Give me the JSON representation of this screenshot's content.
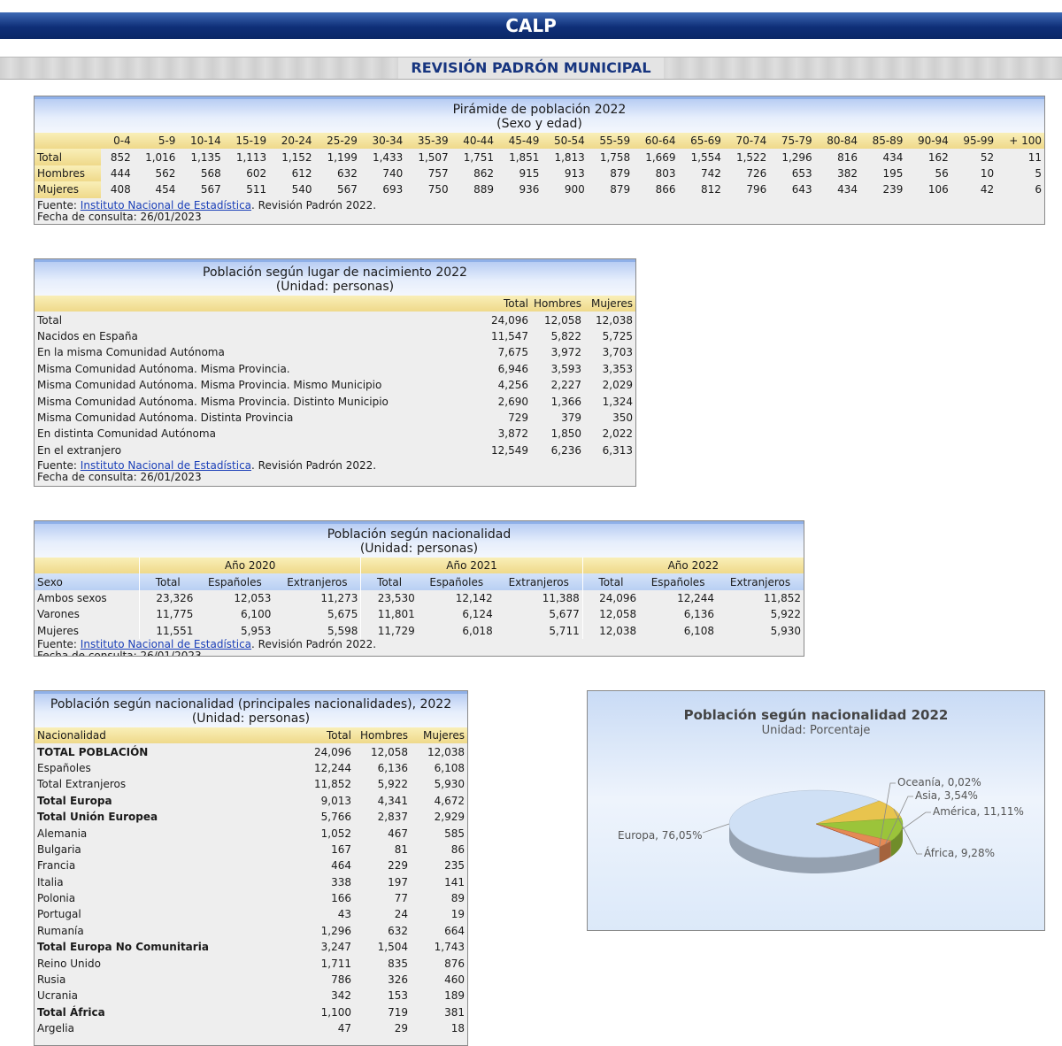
{
  "header": {
    "title": "CALP",
    "subtitle": "REVISIÓN PADRÓN MUNICIPAL"
  },
  "source": {
    "prefix": "Fuente: ",
    "link": "Instituto Nacional de Estadística",
    "suffix": ". Revisión Padrón 2022.",
    "date": "Fecha de consulta: 26/01/2023"
  },
  "piramide": {
    "title": "Pirámide de población 2022",
    "subtitle": "(Sexo y edad)",
    "columns": [
      "0-4",
      "5-9",
      "10-14",
      "15-19",
      "20-24",
      "25-29",
      "30-34",
      "35-39",
      "40-44",
      "45-49",
      "50-54",
      "55-59",
      "60-64",
      "65-69",
      "70-74",
      "75-79",
      "80-84",
      "85-89",
      "90-94",
      "95-99",
      "+ 100"
    ],
    "rows": [
      {
        "label": "Total",
        "values": [
          "852",
          "1,016",
          "1,135",
          "1,113",
          "1,152",
          "1,199",
          "1,433",
          "1,507",
          "1,751",
          "1,851",
          "1,813",
          "1,758",
          "1,669",
          "1,554",
          "1,522",
          "1,296",
          "816",
          "434",
          "162",
          "52",
          "11"
        ]
      },
      {
        "label": "Hombres",
        "values": [
          "444",
          "562",
          "568",
          "602",
          "612",
          "632",
          "740",
          "757",
          "862",
          "915",
          "913",
          "879",
          "803",
          "742",
          "726",
          "653",
          "382",
          "195",
          "56",
          "10",
          "5"
        ]
      },
      {
        "label": "Mujeres",
        "values": [
          "408",
          "454",
          "567",
          "511",
          "540",
          "567",
          "693",
          "750",
          "889",
          "936",
          "900",
          "879",
          "866",
          "812",
          "796",
          "643",
          "434",
          "239",
          "106",
          "42",
          "6"
        ]
      }
    ]
  },
  "nacimiento": {
    "title": "Población según lugar de nacimiento 2022",
    "subtitle": "(Unidad: personas)",
    "columns": [
      "Total",
      "Hombres",
      "Mujeres"
    ],
    "rows": [
      {
        "label": "Total",
        "values": [
          "24,096",
          "12,058",
          "12,038"
        ]
      },
      {
        "label": "Nacidos en España",
        "values": [
          "11,547",
          "5,822",
          "5,725"
        ]
      },
      {
        "label": "En la misma Comunidad Autónoma",
        "values": [
          "7,675",
          "3,972",
          "3,703"
        ]
      },
      {
        "label": "Misma Comunidad Autónoma. Misma Provincia.",
        "values": [
          "6,946",
          "3,593",
          "3,353"
        ]
      },
      {
        "label": "Misma Comunidad Autónoma. Misma Provincia. Mismo Municipio",
        "values": [
          "4,256",
          "2,227",
          "2,029"
        ]
      },
      {
        "label": "Misma Comunidad Autónoma. Misma Provincia. Distinto Municipio",
        "values": [
          "2,690",
          "1,366",
          "1,324"
        ]
      },
      {
        "label": "Misma Comunidad Autónoma. Distinta Provincia",
        "values": [
          "729",
          "379",
          "350"
        ]
      },
      {
        "label": "En distinta Comunidad Autónoma",
        "values": [
          "3,872",
          "1,850",
          "2,022"
        ]
      },
      {
        "label": "En el extranjero",
        "values": [
          "12,549",
          "6,236",
          "6,313"
        ]
      }
    ]
  },
  "nacionalidad": {
    "title": "Población según nacionalidad",
    "subtitle": "(Unidad: personas)",
    "years": [
      "Año 2020",
      "Año 2021",
      "Año 2022"
    ],
    "first_col": "Sexo",
    "sub_columns": [
      "Total",
      "Españoles",
      "Extranjeros"
    ],
    "rows": [
      {
        "label": "Ambos sexos",
        "values": [
          "23,326",
          "12,053",
          "11,273",
          "23,530",
          "12,142",
          "11,388",
          "24,096",
          "12,244",
          "11,852"
        ]
      },
      {
        "label": "Varones",
        "values": [
          "11,775",
          "6,100",
          "5,675",
          "11,801",
          "6,124",
          "5,677",
          "12,058",
          "6,136",
          "5,922"
        ]
      },
      {
        "label": "Mujeres",
        "values": [
          "11,551",
          "5,953",
          "5,598",
          "11,729",
          "6,018",
          "5,711",
          "12,038",
          "6,108",
          "5,930"
        ]
      }
    ]
  },
  "principales": {
    "title": "Población según nacionalidad (principales nacionalidades), 2022",
    "subtitle": "(Unidad: personas)",
    "columns": [
      "Nacionalidad",
      "Total",
      "Hombres",
      "Mujeres"
    ],
    "rows": [
      {
        "label": "TOTAL POBLACIÓN",
        "bold": true,
        "values": [
          "24,096",
          "12,058",
          "12,038"
        ]
      },
      {
        "label": "Españoles",
        "bold": false,
        "values": [
          "12,244",
          "6,136",
          "6,108"
        ]
      },
      {
        "label": "Total Extranjeros",
        "bold": false,
        "values": [
          "11,852",
          "5,922",
          "5,930"
        ]
      },
      {
        "label": "Total Europa",
        "bold": true,
        "values": [
          "9,013",
          "4,341",
          "4,672"
        ]
      },
      {
        "label": "Total Unión Europea",
        "bold": true,
        "values": [
          "5,766",
          "2,837",
          "2,929"
        ]
      },
      {
        "label": "Alemania",
        "bold": false,
        "values": [
          "1,052",
          "467",
          "585"
        ]
      },
      {
        "label": "Bulgaria",
        "bold": false,
        "values": [
          "167",
          "81",
          "86"
        ]
      },
      {
        "label": "Francia",
        "bold": false,
        "values": [
          "464",
          "229",
          "235"
        ]
      },
      {
        "label": "Italia",
        "bold": false,
        "values": [
          "338",
          "197",
          "141"
        ]
      },
      {
        "label": "Polonia",
        "bold": false,
        "values": [
          "166",
          "77",
          "89"
        ]
      },
      {
        "label": "Portugal",
        "bold": false,
        "values": [
          "43",
          "24",
          "19"
        ]
      },
      {
        "label": "Rumanía",
        "bold": false,
        "values": [
          "1,296",
          "632",
          "664"
        ]
      },
      {
        "label": "Total Europa No Comunitaria",
        "bold": true,
        "values": [
          "3,247",
          "1,504",
          "1,743"
        ]
      },
      {
        "label": "Reino Unido",
        "bold": false,
        "values": [
          "1,711",
          "835",
          "876"
        ]
      },
      {
        "label": "Rusia",
        "bold": false,
        "values": [
          "786",
          "326",
          "460"
        ]
      },
      {
        "label": "Ucrania",
        "bold": false,
        "values": [
          "342",
          "153",
          "189"
        ]
      },
      {
        "label": "Total África",
        "bold": true,
        "values": [
          "1,100",
          "719",
          "381"
        ]
      },
      {
        "label": "Argelia",
        "bold": false,
        "values": [
          "47",
          "29",
          "18"
        ]
      }
    ]
  },
  "chart_data": {
    "type": "pie",
    "title": "Población según nacionalidad 2022",
    "subtitle": "Unidad: Porcentaje",
    "slices": [
      {
        "label": "Europa, 76,05%",
        "value": 76.05,
        "color": "#cfe0f5"
      },
      {
        "label": "África, 9,28%",
        "value": 9.28,
        "color": "#e8c44e"
      },
      {
        "label": "América, 11,11%",
        "value": 11.11,
        "color": "#9bc43a"
      },
      {
        "label": "Asia, 3,54%",
        "value": 3.54,
        "color": "#e48a55"
      },
      {
        "label": "Oceanía, 0,02%",
        "value": 0.02,
        "color": "#c85a3a"
      }
    ]
  }
}
